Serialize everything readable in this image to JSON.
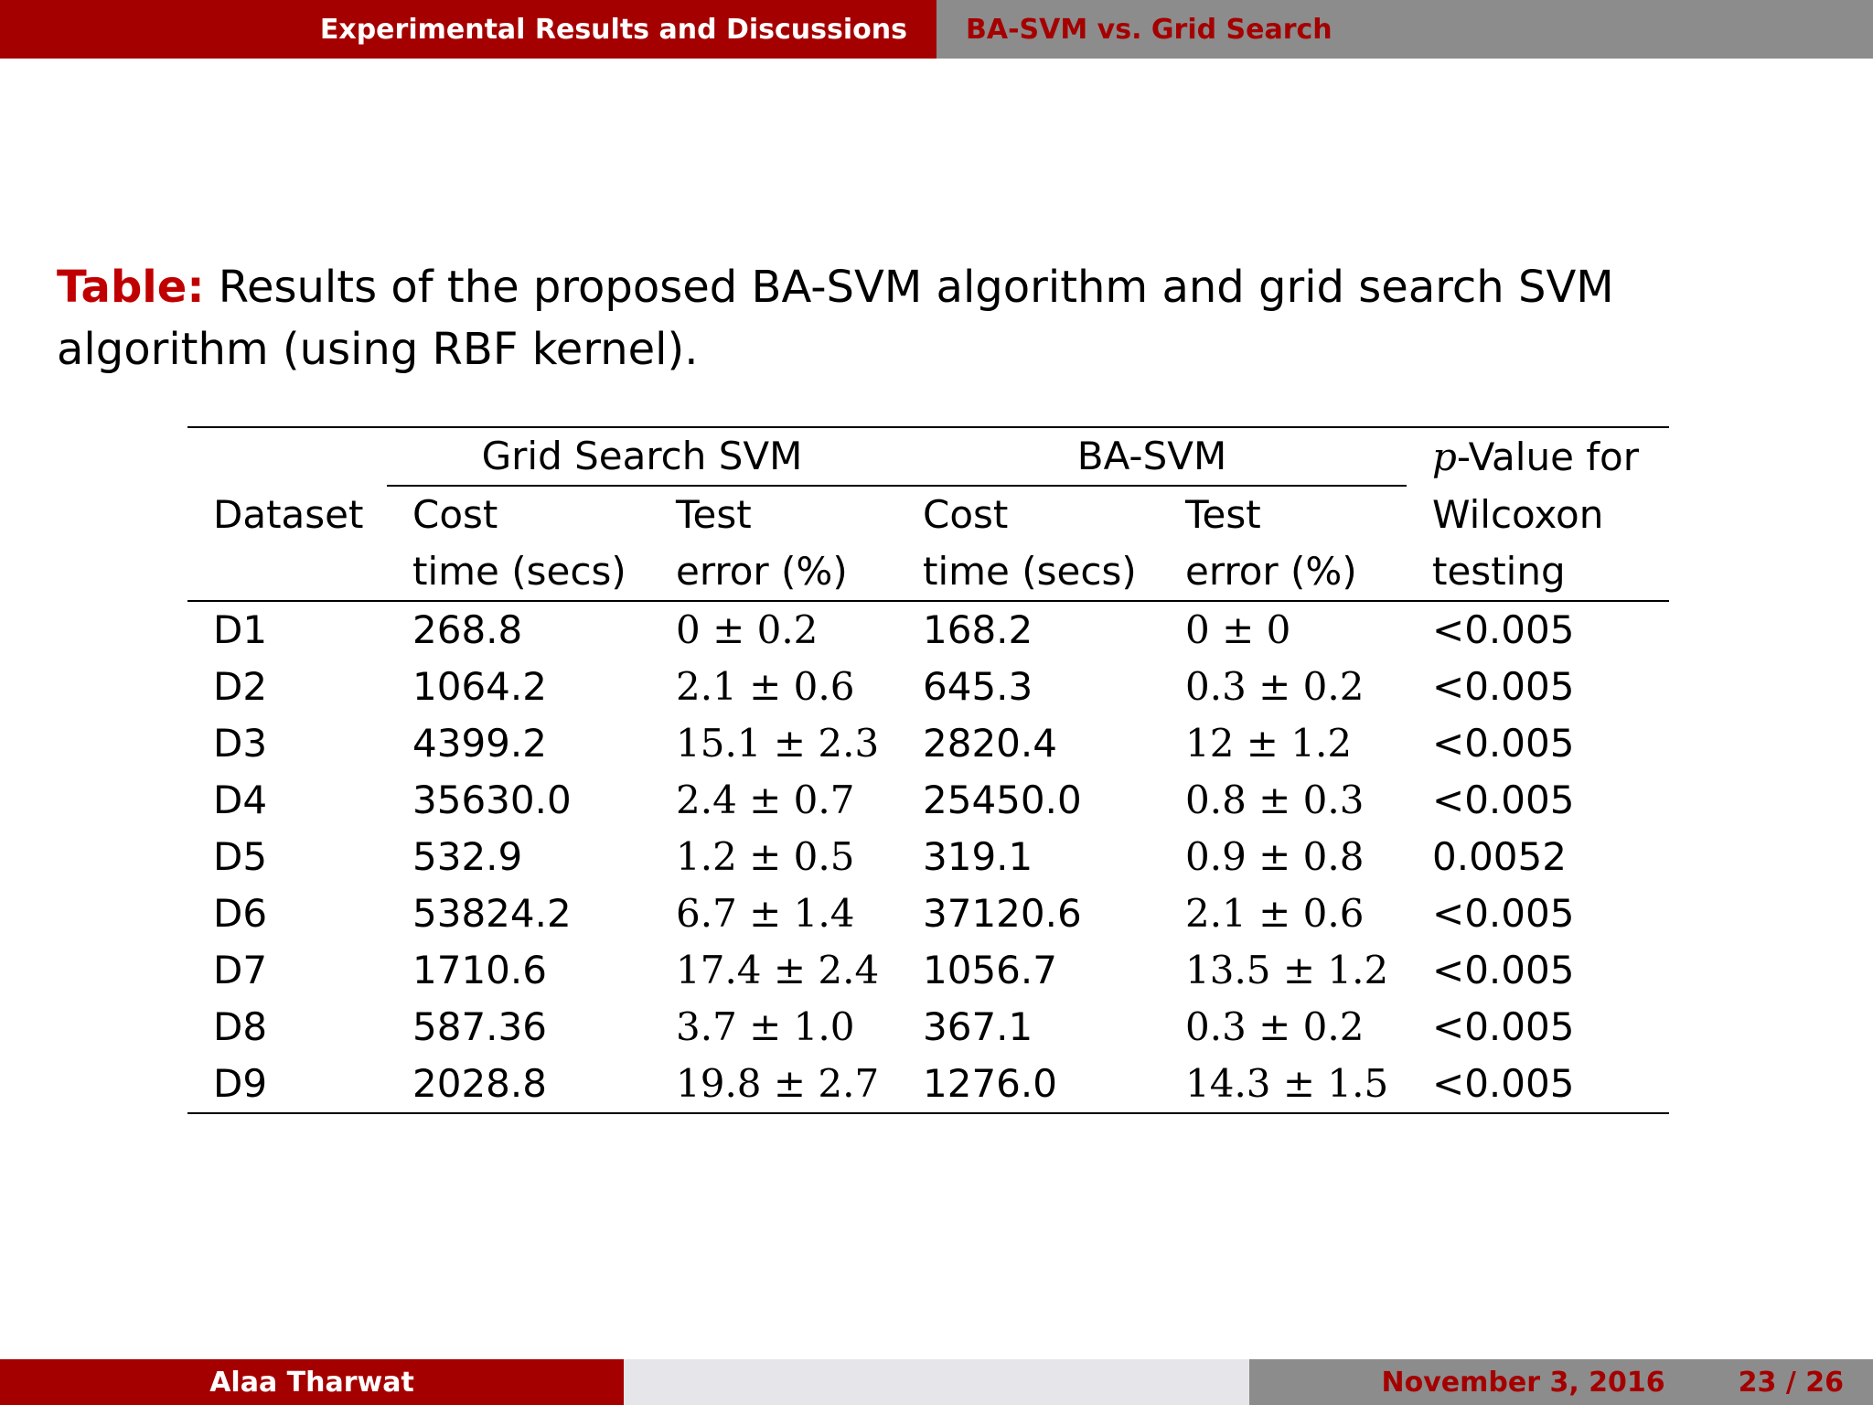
{
  "header": {
    "section": "Experimental Results and Discussions",
    "subsection": "BA-SVM vs. Grid Search"
  },
  "caption": {
    "label": "Table:",
    "text": " Results of the proposed BA-SVM algorithm and grid search SVM algorithm (using RBF kernel)."
  },
  "table": {
    "group_grid": "Grid Search SVM",
    "group_ba": "BA-SVM",
    "dataset_header": "Dataset",
    "pvalue_header_line1_var": "p",
    "pvalue_header_line1_rest": "-Value for",
    "pvalue_header_line2": "Wilcoxon",
    "pvalue_header_line3": "testing",
    "cost_line1": "Cost",
    "cost_line2": "time (secs)",
    "test_line1": "Test",
    "test_line2": "error (%)",
    "rows": [
      {
        "dataset": "D1",
        "grid_cost": "268.8",
        "grid_error": "0 ± 0.2",
        "ba_cost": "168.2",
        "ba_error": "0 ± 0",
        "pvalue": "<0.005"
      },
      {
        "dataset": "D2",
        "grid_cost": "1064.2",
        "grid_error": "2.1 ± 0.6",
        "ba_cost": "645.3",
        "ba_error": "0.3 ± 0.2",
        "pvalue": "<0.005"
      },
      {
        "dataset": "D3",
        "grid_cost": "4399.2",
        "grid_error": "15.1 ± 2.3",
        "ba_cost": "2820.4",
        "ba_error": "12 ± 1.2",
        "pvalue": "<0.005"
      },
      {
        "dataset": "D4",
        "grid_cost": "35630.0",
        "grid_error": "2.4 ± 0.7",
        "ba_cost": "25450.0",
        "ba_error": "0.8 ± 0.3",
        "pvalue": "<0.005"
      },
      {
        "dataset": "D5",
        "grid_cost": "532.9",
        "grid_error": "1.2 ± 0.5",
        "ba_cost": "319.1",
        "ba_error": "0.9 ± 0.8",
        "pvalue": "0.0052"
      },
      {
        "dataset": "D6",
        "grid_cost": "53824.2",
        "grid_error": "6.7 ± 1.4",
        "ba_cost": "37120.6",
        "ba_error": "2.1 ± 0.6",
        "pvalue": "<0.005"
      },
      {
        "dataset": "D7",
        "grid_cost": "1710.6",
        "grid_error": "17.4 ± 2.4",
        "ba_cost": "1056.7",
        "ba_error": "13.5 ± 1.2",
        "pvalue": "<0.005"
      },
      {
        "dataset": "D8",
        "grid_cost": "587.36",
        "grid_error": "3.7 ± 1.0",
        "ba_cost": "367.1",
        "ba_error": "0.3 ± 0.2",
        "pvalue": "<0.005"
      },
      {
        "dataset": "D9",
        "grid_cost": "2028.8",
        "grid_error": "19.8 ± 2.7",
        "ba_cost": "1276.0",
        "ba_error": "14.3 ± 1.5",
        "pvalue": "<0.005"
      }
    ]
  },
  "footer": {
    "author": "Alaa Tharwat",
    "date": "November 3, 2016",
    "page": "23 / 26"
  },
  "colors": {
    "brand_red": "#a50000",
    "caption_red": "#c00000",
    "bar_gray": "#8c8c8c",
    "footer_light": "#e6e6ea"
  }
}
